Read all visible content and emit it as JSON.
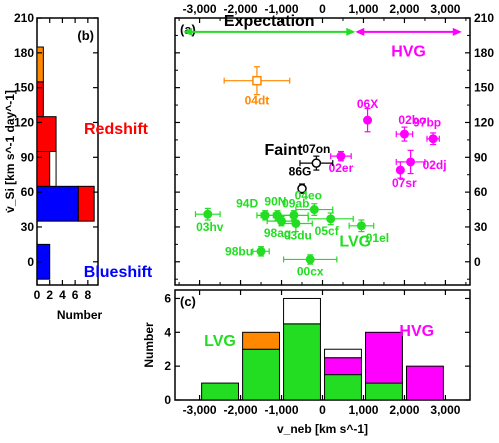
{
  "chart_data": [
    {
      "panel": "(a)",
      "type": "scatter",
      "xlabel": "v_neb [km s^-1]",
      "ylabel": "v̇_Si [km s^-1 day^-1]",
      "xlim": [
        -3600,
        3600
      ],
      "ylim": [
        -20,
        210
      ],
      "x_ticks": [
        "-3,000",
        "-2,000",
        "-1,000",
        "0",
        "1,000",
        "2,000",
        "3,000"
      ],
      "y_ticks": [
        "0",
        "30",
        "60",
        "90",
        "120",
        "150",
        "180",
        "210"
      ],
      "annotations": {
        "expectation": "Expectation",
        "hvg": "HVG",
        "lvg": "LVG",
        "faint": "Faint"
      },
      "expectation_arrows": [
        {
          "from": -3400,
          "to": 800,
          "color": "#22dd22"
        },
        {
          "from": 800,
          "to": 3400,
          "color": "#ff00ff"
        }
      ],
      "points": [
        {
          "name": "04dt",
          "x": -1600,
          "y": 156,
          "xerr": 800,
          "yerr": 12,
          "color": "#ff8800",
          "marker": "open-square"
        },
        {
          "name": "06X",
          "x": 1100,
          "y": 122,
          "xerr": 0,
          "yerr": 10,
          "color": "#ff00ff",
          "marker": "filled-circle"
        },
        {
          "name": "02bo",
          "x": 2000,
          "y": 110,
          "xerr": 200,
          "yerr": 6,
          "color": "#ff00ff",
          "marker": "filled-circle"
        },
        {
          "name": "97bp",
          "x": 2700,
          "y": 106,
          "xerr": 150,
          "yerr": 5,
          "color": "#ff00ff",
          "marker": "filled-circle"
        },
        {
          "name": "02dj",
          "x": 2150,
          "y": 86,
          "xerr": 350,
          "yerr": 10,
          "color": "#ff00ff",
          "marker": "filled-circle"
        },
        {
          "name": "02er",
          "x": 450,
          "y": 91,
          "xerr": 250,
          "yerr": 4,
          "color": "#ff00ff",
          "marker": "filled-circle"
        },
        {
          "name": "07sr",
          "x": 1900,
          "y": 79,
          "xerr": 0,
          "yerr": 7,
          "color": "#ff00ff",
          "marker": "filled-circle"
        },
        {
          "name": "07on",
          "x": -150,
          "y": 85,
          "xerr": 400,
          "yerr": 6,
          "color": "#000000",
          "marker": "open-circle"
        },
        {
          "name": "86G",
          "x": -500,
          "y": 63,
          "xerr": 0,
          "yerr": 4,
          "color": "#000000",
          "marker": "open-circle"
        },
        {
          "name": "04eo",
          "x": -200,
          "y": 45,
          "xerr": 450,
          "yerr": 5,
          "color": "#22dd22",
          "marker": "filled-circle"
        },
        {
          "name": "09ab",
          "x": -700,
          "y": 40,
          "xerr": 350,
          "yerr": 4,
          "color": "#22dd22",
          "marker": "filled-circle"
        },
        {
          "name": "94D",
          "x": -1400,
          "y": 40,
          "xerr": 200,
          "yerr": 4,
          "color": "#22dd22",
          "marker": "filled-circle"
        },
        {
          "name": "90N",
          "x": -1100,
          "y": 40,
          "xerr": 400,
          "yerr": 4,
          "color": "#22dd22",
          "marker": "filled-circle"
        },
        {
          "name": "98aq",
          "x": -1000,
          "y": 35,
          "xerr": 350,
          "yerr": 4,
          "color": "#22dd22",
          "marker": "filled-circle"
        },
        {
          "name": "03du",
          "x": -650,
          "y": 33,
          "xerr": 400,
          "yerr": 7,
          "color": "#22dd22",
          "marker": "filled-circle"
        },
        {
          "name": "05cf",
          "x": 200,
          "y": 37,
          "xerr": 550,
          "yerr": 5,
          "color": "#22dd22",
          "marker": "filled-circle"
        },
        {
          "name": "01el",
          "x": 950,
          "y": 31,
          "xerr": 300,
          "yerr": 5,
          "color": "#22dd22",
          "marker": "filled-circle"
        },
        {
          "name": "03hv",
          "x": -2800,
          "y": 41,
          "xerr": 300,
          "yerr": 5,
          "color": "#22dd22",
          "marker": "filled-circle"
        },
        {
          "name": "98bu",
          "x": -1500,
          "y": 9,
          "xerr": 200,
          "yerr": 4,
          "color": "#22dd22",
          "marker": "filled-circle"
        },
        {
          "name": "00cx",
          "x": -300,
          "y": 2,
          "xerr": 650,
          "yerr": 4,
          "color": "#22dd22",
          "marker": "filled-circle"
        }
      ]
    },
    {
      "panel": "(b)",
      "type": "bar",
      "orientation": "horizontal",
      "xlabel": "Number",
      "x_ticks": [
        "0",
        "2",
        "4",
        "6",
        "8"
      ],
      "xlim": [
        0,
        9.6
      ],
      "annotations": {
        "redshift": "Redshift",
        "blueshift": "Blueshift"
      },
      "bins": [
        {
          "y": 0,
          "segments": [
            {
              "value": 2,
              "color": "#0000ff"
            }
          ]
        },
        {
          "y": 50,
          "segments": [
            {
              "value": 6.5,
              "color": "#0000ff"
            },
            {
              "value": 2.5,
              "color": "#ff0000"
            }
          ]
        },
        {
          "y": 80,
          "segments": [
            {
              "value": 2,
              "color": "#ff0000"
            },
            {
              "value": 1,
              "color": "#ffffff"
            }
          ]
        },
        {
          "y": 110,
          "segments": [
            {
              "value": 3,
              "color": "#ff0000"
            }
          ]
        },
        {
          "y": 140,
          "segments": [
            {
              "value": 1,
              "color": "#ff0000"
            }
          ]
        },
        {
          "y": 170,
          "segments": [
            {
              "value": 1,
              "color": "#ff8800"
            }
          ]
        }
      ]
    },
    {
      "panel": "(c)",
      "type": "bar",
      "orientation": "vertical",
      "stacked": true,
      "xlabel": "v_neb [km s^-1]",
      "ylabel": "Number",
      "y_ticks": [
        "0",
        "2",
        "4",
        "6"
      ],
      "ylim": [
        0,
        6.5
      ],
      "annotations": {
        "lvg": "LVG",
        "hvg": "HVG"
      },
      "bins": [
        {
          "x": -2500,
          "segments": [
            {
              "value": 1,
              "color": "#22dd22"
            }
          ]
        },
        {
          "x": -1500,
          "segments": [
            {
              "value": 3,
              "color": "#22dd22"
            },
            {
              "value": 1,
              "color": "#ff8800"
            }
          ]
        },
        {
          "x": -500,
          "segments": [
            {
              "value": 4.5,
              "color": "#22dd22"
            },
            {
              "value": 1.5,
              "color": "#ffffff"
            }
          ]
        },
        {
          "x": 500,
          "segments": [
            {
              "value": 1.5,
              "color": "#22dd22"
            },
            {
              "value": 1,
              "color": "#ff00ff"
            },
            {
              "value": 0.5,
              "color": "#ffffff"
            }
          ]
        },
        {
          "x": 1500,
          "segments": [
            {
              "value": 1,
              "color": "#22dd22"
            },
            {
              "value": 3,
              "color": "#ff00ff"
            }
          ]
        },
        {
          "x": 2500,
          "segments": [
            {
              "value": 2,
              "color": "#ff00ff"
            }
          ]
        }
      ]
    }
  ]
}
